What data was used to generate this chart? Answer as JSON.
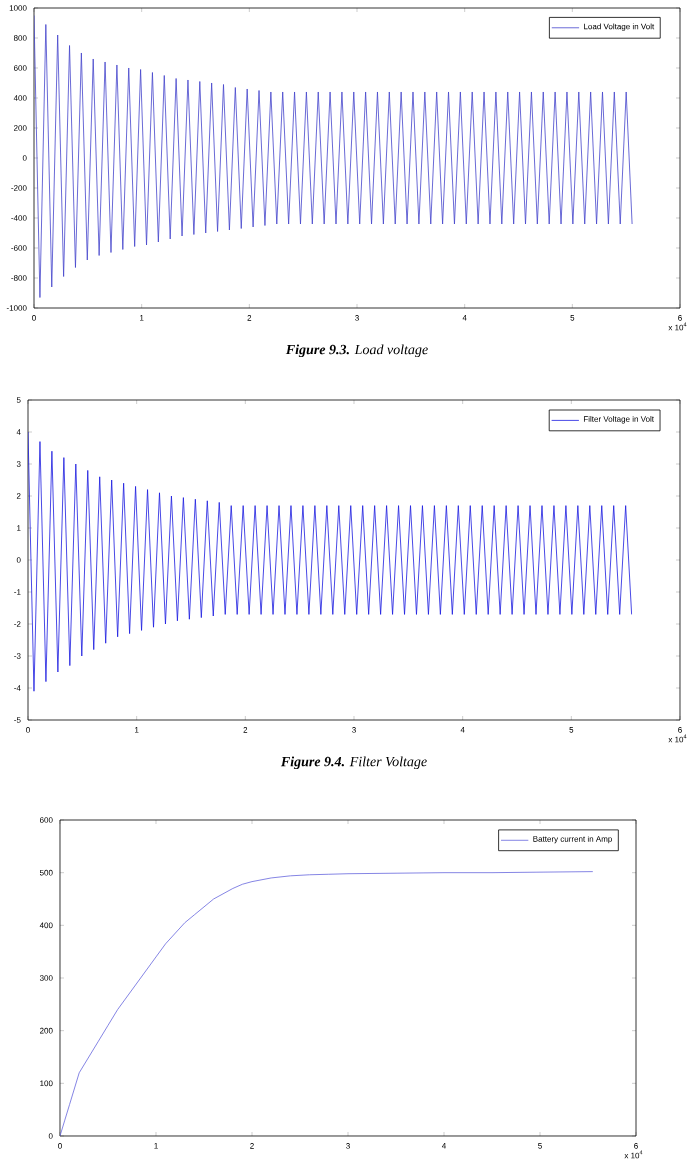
{
  "chart_data": [
    {
      "type": "line",
      "legend": "top right",
      "xlim": [
        0,
        6
      ],
      "ylim": [
        -1000,
        1000
      ],
      "xticks": [
        0,
        1,
        2,
        3,
        4,
        5,
        6
      ],
      "yticks": [
        -1000,
        -800,
        -600,
        -400,
        -200,
        0,
        200,
        400,
        600,
        800,
        1000
      ],
      "annotations": [
        "x 10$^{4}$",
        "**Figure 9.3.** Load voltage"
      ],
      "x": [
        0,
        0.055,
        0.11,
        0.165,
        0.22,
        0.275,
        0.33,
        0.385,
        0.44,
        0.495,
        0.55,
        0.605,
        0.66,
        0.715,
        0.77,
        0.825,
        0.88,
        0.935,
        0.99,
        1.045,
        1.1,
        1.155,
        1.21,
        1.265,
        1.32,
        1.375,
        1.43,
        1.485,
        1.54,
        1.595,
        1.65,
        1.705,
        1.76,
        1.815,
        1.87,
        1.925,
        1.98,
        2.035,
        2.09,
        2.145,
        2.2,
        2.255,
        2.31,
        2.365,
        2.42,
        2.475,
        2.53,
        2.585,
        2.64,
        2.695,
        2.75,
        2.805,
        2.86,
        2.915,
        2.97,
        3.025,
        3.08,
        3.135,
        3.19,
        3.245,
        3.3,
        3.355,
        3.41,
        3.465,
        3.52,
        3.575,
        3.63,
        3.685,
        3.74,
        3.795,
        3.85,
        3.905,
        3.96,
        4.015,
        4.07,
        4.125,
        4.18,
        4.235,
        4.29,
        4.345,
        4.4,
        4.455,
        4.51,
        4.565,
        4.62,
        4.675,
        4.73,
        4.785,
        4.84,
        4.895,
        4.95,
        5.005,
        5.06,
        5.115,
        5.17,
        5.225,
        5.28,
        5.335,
        5.39,
        5.445,
        5.5,
        5.555
      ],
      "series": [
        {
          "name": "Load Voltage in Volt",
          "color": "#4444cc",
          "values": [
            950,
            -930,
            890,
            -860,
            820,
            -790,
            750,
            -730,
            700,
            -680,
            660,
            -650,
            640,
            -630,
            620,
            -610,
            600,
            -590,
            590,
            -580,
            570,
            -560,
            550,
            -540,
            530,
            -520,
            520,
            -510,
            510,
            -500,
            500,
            -490,
            490,
            -480,
            470,
            -470,
            460,
            -460,
            450,
            -450,
            440,
            -440,
            440,
            -440,
            440,
            -440,
            440,
            -440,
            440,
            -440,
            440,
            -440,
            440,
            -440,
            440,
            -440,
            440,
            -440,
            440,
            -440,
            440,
            -440,
            440,
            -440,
            440,
            -440,
            440,
            -440,
            440,
            -440,
            440,
            -440,
            440,
            -440,
            440,
            -440,
            440,
            -440,
            440,
            -440,
            440,
            -440,
            440,
            -440,
            440,
            -440,
            440,
            -440,
            440,
            -440,
            440,
            -440,
            440,
            -440,
            440,
            -440,
            440,
            -440,
            440,
            -440,
            440,
            -440
          ]
        }
      ]
    },
    {
      "type": "line",
      "legend": "top right",
      "xlim": [
        0,
        6
      ],
      "ylim": [
        -5,
        5
      ],
      "xticks": [
        0,
        1,
        2,
        3,
        4,
        5,
        6
      ],
      "yticks": [
        -5,
        -4,
        -3,
        -2,
        -1,
        0,
        1,
        2,
        3,
        4,
        5
      ],
      "annotations": [
        "x 10$^{4}$",
        "**Figure 9.4.** Filter Voltage"
      ],
      "x": [
        0,
        0.055,
        0.11,
        0.165,
        0.22,
        0.275,
        0.33,
        0.385,
        0.44,
        0.495,
        0.55,
        0.605,
        0.66,
        0.715,
        0.77,
        0.825,
        0.88,
        0.935,
        0.99,
        1.045,
        1.1,
        1.155,
        1.21,
        1.265,
        1.32,
        1.375,
        1.43,
        1.485,
        1.54,
        1.595,
        1.65,
        1.705,
        1.76,
        1.815,
        1.87,
        1.925,
        1.98,
        2.035,
        2.09,
        2.145,
        2.2,
        2.255,
        2.31,
        2.365,
        2.42,
        2.475,
        2.53,
        2.585,
        2.64,
        2.695,
        2.75,
        2.805,
        2.86,
        2.915,
        2.97,
        3.025,
        3.08,
        3.135,
        3.19,
        3.245,
        3.3,
        3.355,
        3.41,
        3.465,
        3.52,
        3.575,
        3.63,
        3.685,
        3.74,
        3.795,
        3.85,
        3.905,
        3.96,
        4.015,
        4.07,
        4.125,
        4.18,
        4.235,
        4.29,
        4.345,
        4.4,
        4.455,
        4.51,
        4.565,
        4.62,
        4.675,
        4.73,
        4.785,
        4.84,
        4.895,
        4.95,
        5.005,
        5.06,
        5.115,
        5.17,
        5.225,
        5.28,
        5.335,
        5.39,
        5.445,
        5.5,
        5.555
      ],
      "series": [
        {
          "name": "Filter Voltage in Volt",
          "color": "#1a1ae0",
          "values": [
            4.0,
            -4.1,
            3.7,
            -3.8,
            3.4,
            -3.5,
            3.2,
            -3.3,
            3.0,
            -3.0,
            2.8,
            -2.8,
            2.6,
            -2.6,
            2.5,
            -2.4,
            2.4,
            -2.3,
            2.3,
            -2.2,
            2.2,
            -2.1,
            2.1,
            -2.0,
            2.0,
            -1.9,
            1.95,
            -1.85,
            1.9,
            -1.8,
            1.85,
            -1.75,
            1.8,
            -1.7,
            1.7,
            -1.7,
            1.7,
            -1.7,
            1.7,
            -1.7,
            1.7,
            -1.7,
            1.7,
            -1.7,
            1.7,
            -1.7,
            1.7,
            -1.7,
            1.7,
            -1.7,
            1.7,
            -1.7,
            1.7,
            -1.7,
            1.7,
            -1.7,
            1.7,
            -1.7,
            1.7,
            -1.7,
            1.7,
            -1.7,
            1.7,
            -1.7,
            1.7,
            -1.7,
            1.7,
            -1.7,
            1.7,
            -1.7,
            1.7,
            -1.7,
            1.7,
            -1.7,
            1.7,
            -1.7,
            1.7,
            -1.7,
            1.7,
            -1.7,
            1.7,
            -1.7,
            1.7,
            -1.7,
            1.7,
            -1.7,
            1.7,
            -1.7,
            1.7,
            -1.7,
            1.7,
            -1.7,
            1.7,
            -1.7,
            1.7,
            -1.7,
            1.7,
            -1.7,
            1.7,
            -1.7,
            1.7,
            -1.7
          ]
        }
      ]
    },
    {
      "type": "line",
      "legend": "top right",
      "xlim": [
        0,
        6
      ],
      "ylim": [
        0,
        600
      ],
      "xticks": [
        0,
        1,
        2,
        3,
        4,
        5,
        6
      ],
      "yticks": [
        0,
        100,
        200,
        300,
        400,
        500,
        600
      ],
      "annotations": [
        "x 10$^{4}$"
      ],
      "x": [
        0,
        0.05,
        0.1,
        0.15,
        0.2,
        0.3,
        0.4,
        0.5,
        0.6,
        0.7,
        0.8,
        0.9,
        1.0,
        1.1,
        1.2,
        1.3,
        1.4,
        1.5,
        1.6,
        1.7,
        1.8,
        1.9,
        2.0,
        2.2,
        2.4,
        2.6,
        2.8,
        3.0,
        3.5,
        4.0,
        4.5,
        5.0,
        5.55
      ],
      "series": [
        {
          "name": "Battery current in Amp",
          "color": "#6666dd",
          "values": [
            0,
            30,
            60,
            90,
            120,
            150,
            180,
            210,
            240,
            265,
            290,
            315,
            340,
            365,
            385,
            405,
            420,
            435,
            450,
            460,
            470,
            478,
            483,
            490,
            494,
            496,
            497,
            498,
            499,
            500,
            500,
            501,
            502
          ]
        }
      ]
    }
  ]
}
